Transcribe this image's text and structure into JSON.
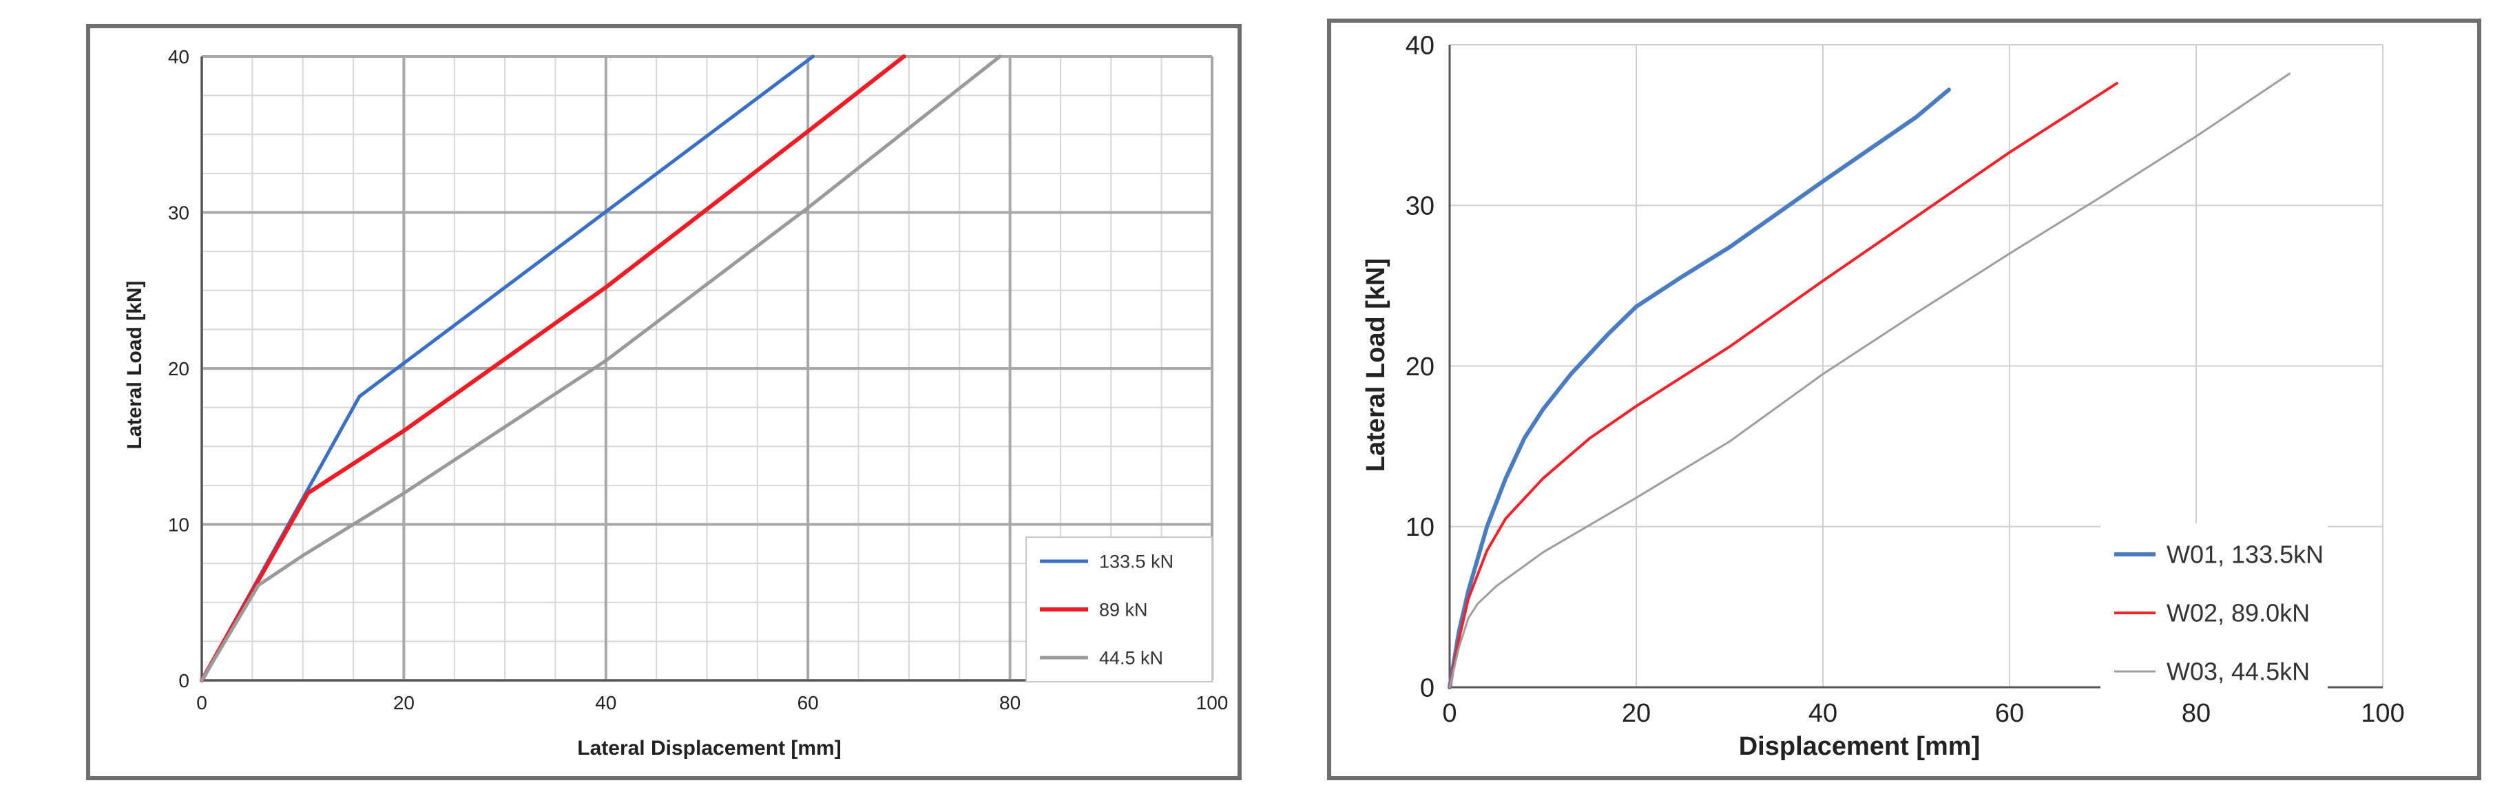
{
  "chart_data": [
    {
      "type": "line",
      "title": "",
      "xlabel": "Lateral Displacement [mm]",
      "ylabel": "Lateral Load [kN]",
      "xlim": [
        0,
        100
      ],
      "ylim": [
        0,
        40
      ],
      "x_ticks": [
        "0",
        "20",
        "40",
        "60",
        "80",
        "100"
      ],
      "y_ticks": [
        "0",
        "10",
        "20",
        "30",
        "40"
      ],
      "grid": "major and minor",
      "legend_position": "bottom-right",
      "series": [
        {
          "name": "133.5 kN",
          "color": "#3a6fc4",
          "points": [
            [
              0,
              0
            ],
            [
              15.6,
              18.2
            ],
            [
              60.5,
              40
            ]
          ]
        },
        {
          "name": "89 kN",
          "color": "#ee1c24",
          "points": [
            [
              0,
              0
            ],
            [
              10.5,
              12
            ],
            [
              20,
              16
            ],
            [
              40,
              25.2
            ],
            [
              60,
              35.2
            ],
            [
              69.5,
              40
            ]
          ]
        },
        {
          "name": "44.5 kN",
          "color": "#9a9a9a",
          "points": [
            [
              0,
              0
            ],
            [
              5.6,
              6.1
            ],
            [
              10,
              8
            ],
            [
              20,
              12
            ],
            [
              40,
              20.5
            ],
            [
              60,
              30.3
            ],
            [
              79,
              40
            ]
          ]
        }
      ]
    },
    {
      "type": "line",
      "title": "",
      "xlabel": "Displacement [mm]",
      "ylabel": "Lateral Load [kN]",
      "xlim": [
        0,
        100
      ],
      "ylim": [
        0,
        40
      ],
      "x_ticks": [
        "0",
        "20",
        "40",
        "60",
        "80",
        "100"
      ],
      "y_ticks": [
        "0",
        "10",
        "20",
        "30",
        "40"
      ],
      "grid": "major",
      "legend_position": "bottom-right",
      "series": [
        {
          "name": "W01, 133.5kN",
          "color": "#4a7cc0",
          "points": [
            [
              0,
              0
            ],
            [
              1,
              3.5
            ],
            [
              2,
              6
            ],
            [
              4,
              10
            ],
            [
              6,
              13
            ],
            [
              8,
              15.5
            ],
            [
              10,
              17.3
            ],
            [
              13,
              19.5
            ],
            [
              17,
              22
            ],
            [
              20,
              23.7
            ],
            [
              25,
              25.6
            ],
            [
              30,
              27.4
            ],
            [
              40,
              31.5
            ],
            [
              50,
              35.5
            ],
            [
              53.5,
              37.2
            ]
          ]
        },
        {
          "name": "W02, 89.0kN",
          "color": "#f0232a",
          "points": [
            [
              0,
              0
            ],
            [
              1,
              3
            ],
            [
              2,
              5.5
            ],
            [
              4,
              8.5
            ],
            [
              6,
              10.5
            ],
            [
              10,
              13
            ],
            [
              15,
              15.5
            ],
            [
              20,
              17.5
            ],
            [
              30,
              21.2
            ],
            [
              40,
              25.3
            ],
            [
              50,
              29.3
            ],
            [
              60,
              33.3
            ],
            [
              71.5,
              37.6
            ]
          ]
        },
        {
          "name": "W03, 44.5kN",
          "color": "#9e9e9e",
          "points": [
            [
              0,
              0
            ],
            [
              1,
              2.5
            ],
            [
              2,
              4.3
            ],
            [
              3,
              5.2
            ],
            [
              5,
              6.3
            ],
            [
              10,
              8.4
            ],
            [
              20,
              11.8
            ],
            [
              30,
              15.3
            ],
            [
              40,
              19.5
            ],
            [
              50,
              23.3
            ],
            [
              60,
              27
            ],
            [
              70,
              30.6
            ],
            [
              80,
              34.3
            ],
            [
              90,
              38.2
            ]
          ]
        }
      ]
    }
  ]
}
